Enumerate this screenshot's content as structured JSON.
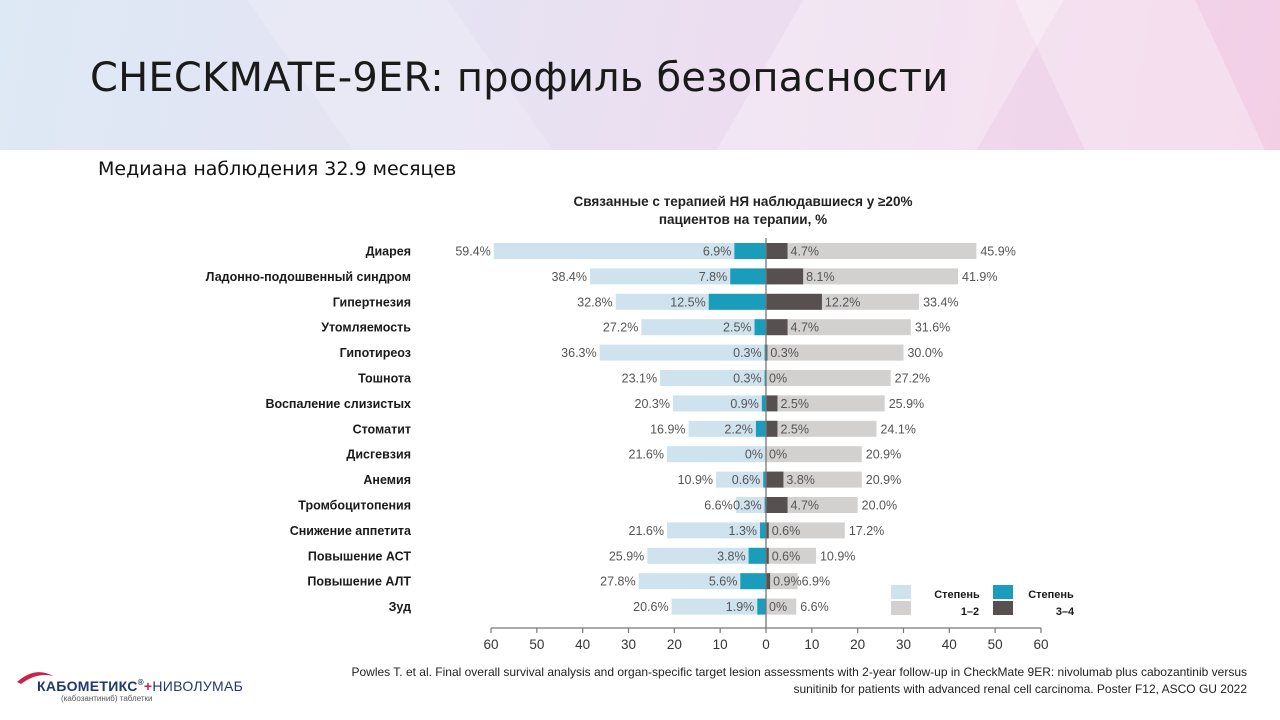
{
  "slide": {
    "title": "CHECKMATE-9ER: профиль безопасности",
    "subtitle": "Медиана наблюдения 32.9 месяцев",
    "footnote_line1": "Powles T. et al. Final overall survival analysis and organ-specific target lesion assessments with 2-year follow-up in CheckMate 9ER: nivolumab plus cabozantinib versus",
    "footnote_line2": "sunitinib for patients with advanced renal cell carcinoma. Poster F12, ASCO GU 2022"
  },
  "logo": {
    "brand": "КАБОМЕТИКС",
    "reg": "®",
    "plus": "+",
    "brand2": "НИВОЛУМАБ",
    "tagline": "(кабозантиниб) таблетки"
  },
  "chart_data": {
    "type": "bar",
    "orientation": "horizontal-diverging",
    "title_line1": "Связанные с терапией НЯ наблюдавшиеся у ≥20%",
    "title_line2": "пациентов на терапии, %",
    "categories": [
      "Диарея",
      "Ладонно-подошвенный синдром",
      "Гипертнезия",
      "Утомляемость",
      "Гипотиреоз",
      "Тошнота",
      "Воспаление слизистых",
      "Стоматит",
      "Дисгевзия",
      "Анемия",
      "Тромбоцитопения",
      "Снижение аппетита",
      "Повышение АСТ",
      "Повышение АЛТ",
      "Зуд"
    ],
    "left_any_grade": [
      59.4,
      38.4,
      32.8,
      27.2,
      36.3,
      23.1,
      20.3,
      16.9,
      21.6,
      10.9,
      6.6,
      21.6,
      25.9,
      27.8,
      20.6
    ],
    "left_grade_3_4": [
      6.9,
      7.8,
      12.5,
      2.5,
      0.3,
      0.3,
      0.9,
      2.2,
      0,
      0.6,
      0.3,
      1.3,
      3.8,
      5.6,
      1.9
    ],
    "right_grade_3_4": [
      4.7,
      8.1,
      12.2,
      4.7,
      0.3,
      0,
      2.5,
      2.5,
      0,
      3.8,
      4.7,
      0.6,
      0.6,
      0.9,
      0
    ],
    "right_any_grade": [
      45.9,
      41.9,
      33.4,
      31.6,
      30.0,
      27.2,
      25.9,
      24.1,
      20.9,
      20.9,
      20.0,
      17.2,
      10.9,
      6.9,
      6.6
    ],
    "xlim": [
      -60,
      60
    ],
    "x_ticks": [
      60,
      50,
      40,
      30,
      20,
      10,
      0,
      10,
      20,
      30,
      40,
      50,
      60
    ],
    "legend": {
      "position": "bottom-right",
      "grade12_line1": "Степень",
      "grade12_line2": "1–2",
      "grade34_line1": "Степень",
      "grade34_line2": "3–4"
    },
    "colors": {
      "left_light": "#cfe3ee",
      "left_dark": "#1a9dba",
      "right_light": "#d3d0d0",
      "right_dark": "#565050",
      "label": "#555555",
      "axis": "#777777"
    }
  }
}
